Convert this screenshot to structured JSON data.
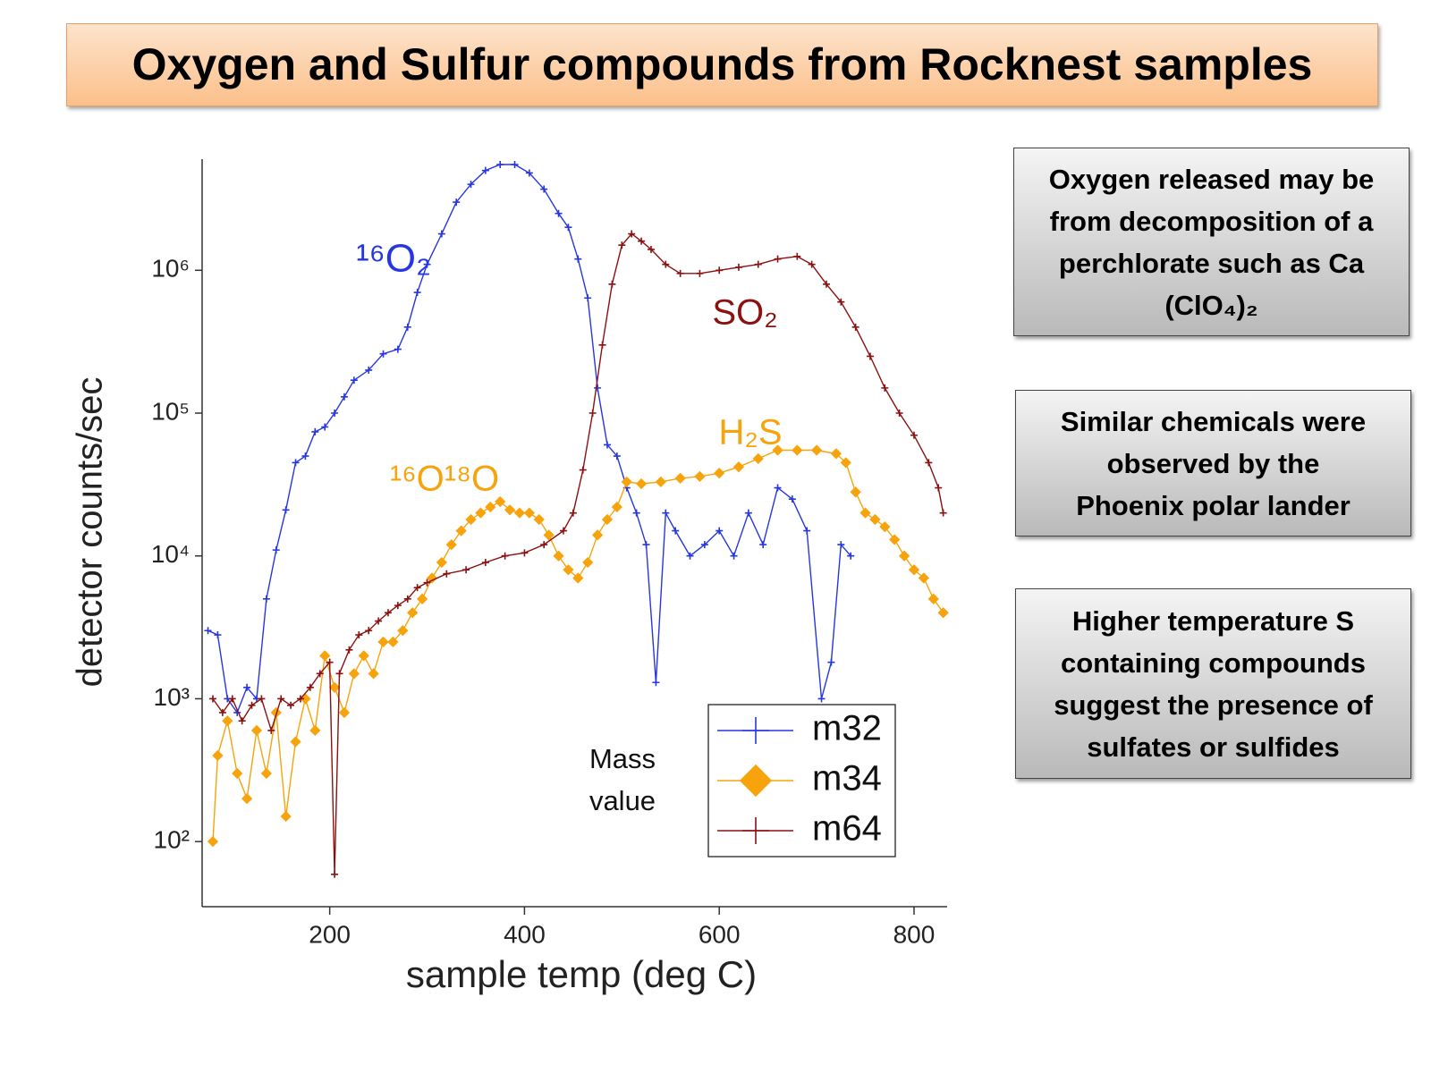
{
  "header": {
    "title": "Oxygen and Sulfur compounds from Rocknest samples"
  },
  "notes": [
    {
      "lines": [
        "Oxygen released may be",
        "from decomposition of a",
        "perchlorate such as Ca",
        "(ClO₄)₂"
      ]
    },
    {
      "lines": [
        "Similar chemicals were",
        "observed by the",
        "Phoenix polar lander"
      ]
    },
    {
      "lines": [
        "Higher temperature S",
        "containing compounds",
        "suggest the presence of",
        "sulfates or sulfides"
      ]
    }
  ],
  "chart_data": {
    "type": "line",
    "log_y": true,
    "x_label": "sample temp (deg C)",
    "y_label": "detector counts/sec",
    "xlim": [
      69,
      834
    ],
    "ylim": [
      35,
      6000000
    ],
    "xticks": [
      200,
      400,
      600,
      800
    ],
    "yticks": [
      {
        "value": 100,
        "label": "10²"
      },
      {
        "value": 1000,
        "label": "10³"
      },
      {
        "value": 10000,
        "label": "10⁴"
      },
      {
        "value": 100000,
        "label": "10⁵"
      },
      {
        "value": 1000000,
        "label": "10⁶"
      }
    ],
    "annotations": [
      "¹⁶O₂",
      "SO₂",
      "H₂S",
      "¹⁶O¹⁸O",
      "Mass",
      "value"
    ],
    "series": [
      {
        "name": "m32",
        "color": "#2636e0",
        "marker": "plus",
        "x": [
          75,
          85,
          95,
          105,
          115,
          125,
          135,
          145,
          155,
          165,
          175,
          185,
          195,
          205,
          215,
          225,
          240,
          255,
          270,
          280,
          290,
          300,
          315,
          330,
          345,
          360,
          375,
          390,
          405,
          420,
          435,
          445,
          455,
          465,
          475,
          485,
          495,
          505,
          515,
          525,
          535,
          545,
          555,
          570,
          585,
          600,
          615,
          630,
          645,
          660,
          675,
          690,
          705,
          715,
          725,
          735
        ],
        "values": [
          3000,
          2800,
          1000,
          800,
          1200,
          1000,
          5000,
          11000,
          21000,
          45000,
          50000,
          74000,
          80000,
          100000,
          130000,
          170000,
          200000,
          260000,
          280000,
          400000,
          700000,
          1100000,
          1800000,
          3000000,
          4000000,
          5000000,
          5500000,
          5500000,
          4800000,
          3700000,
          2500000,
          2000000,
          1200000,
          640000,
          150000,
          60000,
          50000,
          30000,
          20000,
          12000,
          1300,
          20000,
          15000,
          10000,
          12000,
          15000,
          10000,
          20000,
          12000,
          30000,
          25000,
          15000,
          1000,
          1800,
          12000,
          10000
        ]
      },
      {
        "name": "m34",
        "color": "#f7a30c",
        "marker": "diamond",
        "x": [
          80,
          85,
          95,
          105,
          115,
          125,
          135,
          145,
          155,
          165,
          175,
          185,
          195,
          205,
          215,
          225,
          235,
          245,
          255,
          265,
          275,
          285,
          295,
          305,
          315,
          325,
          335,
          345,
          355,
          365,
          375,
          385,
          395,
          405,
          415,
          425,
          435,
          445,
          455,
          465,
          475,
          485,
          495,
          505,
          520,
          540,
          560,
          580,
          600,
          620,
          640,
          660,
          680,
          700,
          720,
          730,
          740,
          750,
          760,
          770,
          780,
          790,
          800,
          810,
          820,
          830
        ],
        "values": [
          100,
          400,
          700,
          300,
          200,
          600,
          300,
          800,
          150,
          500,
          1000,
          600,
          2000,
          1200,
          800,
          1500,
          2000,
          1500,
          2500,
          2500,
          3000,
          4000,
          5000,
          7000,
          9000,
          12000,
          15000,
          18000,
          20000,
          22000,
          24000,
          21000,
          20000,
          20000,
          18000,
          14000,
          10000,
          8000,
          7000,
          9000,
          14000,
          18000,
          22000,
          33000,
          32000,
          33000,
          35000,
          36000,
          38000,
          42000,
          48000,
          55000,
          55000,
          55000,
          52000,
          45000,
          28000,
          20000,
          18000,
          16000,
          13000,
          10000,
          8000,
          7000,
          5000,
          4000
        ]
      },
      {
        "name": "m64",
        "color": "#8b1010",
        "marker": "plus",
        "x": [
          80,
          90,
          100,
          110,
          120,
          130,
          140,
          150,
          160,
          170,
          180,
          190,
          200,
          205,
          210,
          220,
          230,
          240,
          250,
          260,
          270,
          280,
          290,
          300,
          320,
          340,
          360,
          380,
          400,
          420,
          440,
          450,
          460,
          470,
          480,
          490,
          500,
          510,
          520,
          530,
          545,
          560,
          580,
          600,
          620,
          640,
          660,
          680,
          695,
          710,
          725,
          740,
          755,
          770,
          785,
          800,
          815,
          825,
          830
        ],
        "values": [
          1000,
          800,
          1000,
          700,
          900,
          1000,
          600,
          1000,
          900,
          1000,
          1200,
          1500,
          1800,
          59,
          1500,
          2200,
          2800,
          3000,
          3500,
          4000,
          4500,
          5000,
          6000,
          6500,
          7500,
          8000,
          9000,
          10000,
          10500,
          12000,
          15000,
          20000,
          40000,
          100000,
          300000,
          800000,
          1500000,
          1800000,
          1600000,
          1400000,
          1100000,
          950000,
          950000,
          1000000,
          1050000,
          1100000,
          1200000,
          1250000,
          1100000,
          800000,
          600000,
          400000,
          250000,
          150000,
          100000,
          70000,
          45000,
          30000,
          20000
        ]
      }
    ]
  }
}
